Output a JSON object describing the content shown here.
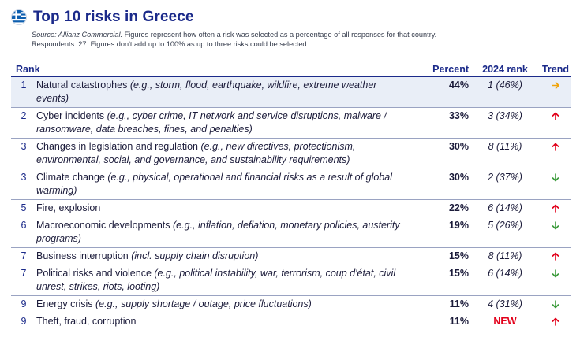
{
  "header": {
    "title": "Top 10 risks in Greece",
    "source_label": "Source: Allianz Commercial.",
    "source_rest": " Figures represent how often a risk was selected as a percentage of all responses for that country.",
    "respondents": "Respondents: 27. Figures don't add up to 100% as up to three risks could be selected."
  },
  "columns": {
    "rank": "Rank",
    "percent": "Percent",
    "rank2024": "2024 rank",
    "trend": "Trend"
  },
  "colors": {
    "up": "#e2001a",
    "down": "#3a9a3a",
    "same": "#f0a30a"
  },
  "rows": [
    {
      "rank": "1",
      "name": "Natural catastrophes",
      "detail": " (e.g., storm, flood, earthquake, wildfire, extreme weather events)",
      "percent": "44%",
      "rank2024": "1 (46%)",
      "trend": "right-arrow-icon"
    },
    {
      "rank": "2",
      "name": "Cyber incidents",
      "detail": " (e.g., cyber crime, IT network and service disruptions, malware / ransomware, data breaches, fines, and penalties)",
      "percent": "33%",
      "rank2024": "3 (34%)",
      "trend": "up-arrow-icon"
    },
    {
      "rank": "3",
      "name": "Changes in legislation and regulation",
      "detail": " (e.g., new directives, protectionism, environmental, social, and governance, and sustainability requirements)",
      "percent": "30%",
      "rank2024": "8 (11%)",
      "trend": "up-arrow-icon"
    },
    {
      "rank": "3",
      "name": "Climate change",
      "detail": " (e.g., physical, operational and financial risks as a result of global warming)",
      "percent": "30%",
      "rank2024": "2 (37%)",
      "trend": "down-arrow-icon"
    },
    {
      "rank": "5",
      "name": "Fire, explosion",
      "detail": "",
      "percent": "22%",
      "rank2024": "6 (14%)",
      "trend": "up-arrow-icon"
    },
    {
      "rank": "6",
      "name": "Macroeconomic developments",
      "detail": " (e.g., inflation, deflation, monetary policies, austerity programs)",
      "percent": "19%",
      "rank2024": "5 (26%)",
      "trend": "down-arrow-icon"
    },
    {
      "rank": "7",
      "name": "Business interruption",
      "detail": " (incl. supply chain disruption)",
      "percent": "15%",
      "rank2024": "8 (11%)",
      "trend": "up-arrow-icon"
    },
    {
      "rank": "7",
      "name": "Political risks and violence",
      "detail": " (e.g., political instability, war, terrorism, coup d'état, civil unrest, strikes, riots, looting)",
      "percent": "15%",
      "rank2024": "6 (14%)",
      "trend": "down-arrow-icon"
    },
    {
      "rank": "9",
      "name": "Energy crisis",
      "detail": " (e.g., supply shortage / outage, price fluctuations)",
      "percent": "11%",
      "rank2024": "4 (31%)",
      "trend": "down-arrow-icon"
    },
    {
      "rank": "9",
      "name": "Theft, fraud, corruption",
      "detail": "",
      "percent": "11%",
      "rank2024": "NEW",
      "trend": "up-arrow-icon"
    }
  ]
}
